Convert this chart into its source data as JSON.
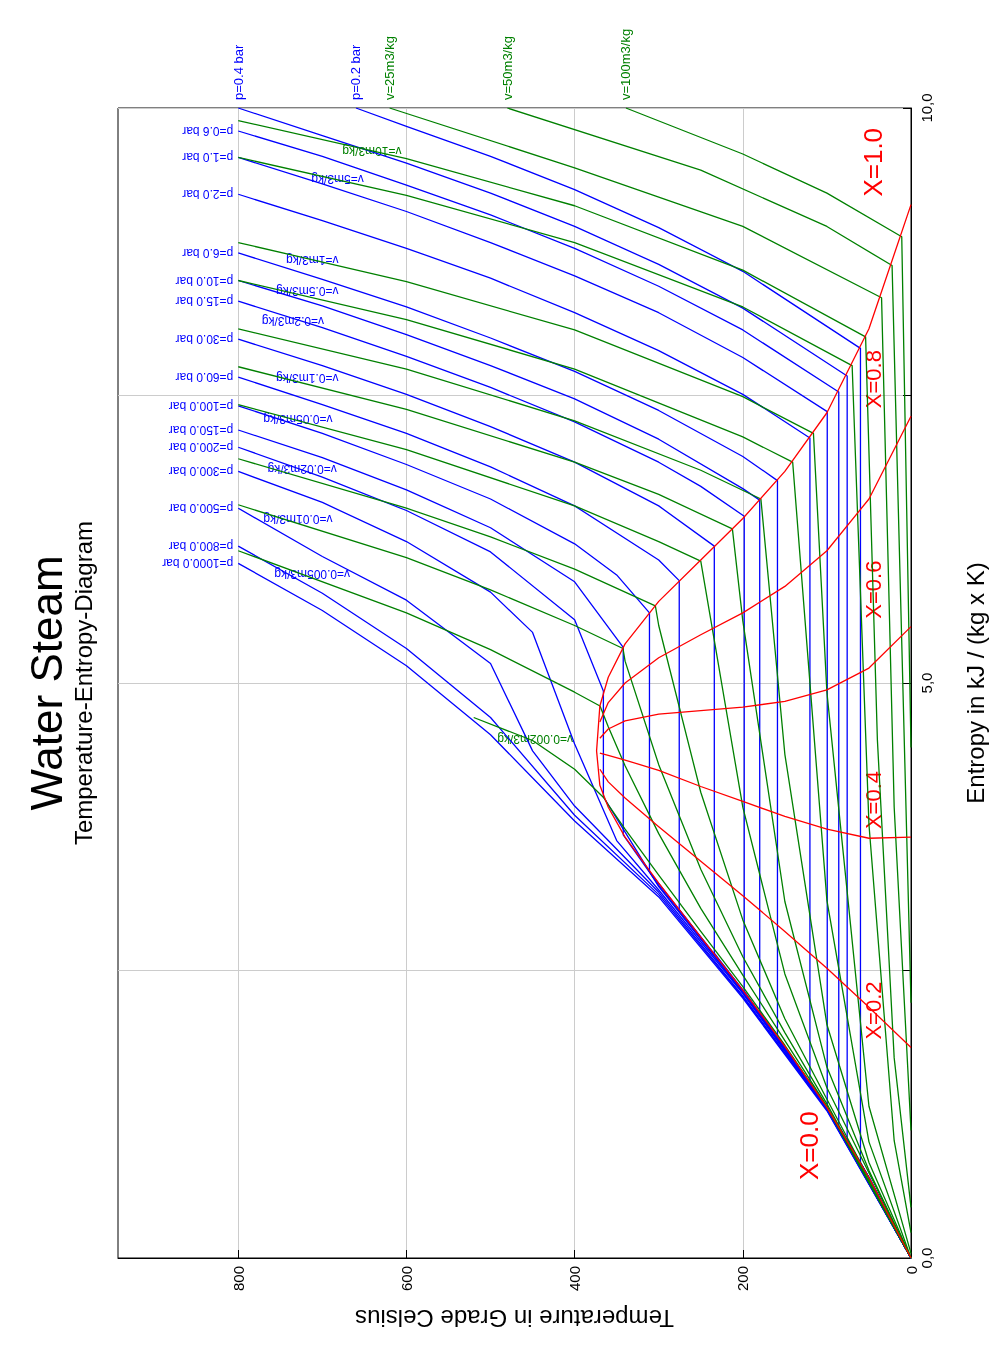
{
  "chart_data": {
    "type": "line",
    "title": "Water Steam",
    "subtitle": "Temperature-Entropy-Diagram",
    "xlabel": "Temperature in Grade Celsius",
    "ylabel": "Entropy in kJ / (kg x K)",
    "xlim": [
      943,
      0
    ],
    "ylim": [
      0,
      10
    ],
    "xticks": [
      0,
      200,
      400,
      600,
      800
    ],
    "yticks": [
      {
        "value": 0,
        "label": "0,0"
      },
      {
        "value": 2.5,
        "label": null
      },
      {
        "value": 5,
        "label": "5,0"
      },
      {
        "value": 7.5,
        "label": null
      },
      {
        "value": 10,
        "label": "10,0"
      }
    ],
    "grid": true,
    "series": [
      {
        "name": "p=1000.0 bar",
        "color": "#0000ff",
        "values": [
          0,
          1.28,
          2.26,
          3.14,
          3.8,
          4.55,
          5.15,
          5.63,
          6.04
        ],
        "x": [
          0,
          100,
          200,
          300,
          400,
          500,
          600,
          700,
          800
        ]
      },
      {
        "name": "p=800.0 bar",
        "color": "#0000ff",
        "values": [
          0,
          1.29,
          2.27,
          3.16,
          3.85,
          4.7,
          5.3,
          5.78,
          6.19
        ],
        "x": [
          0,
          100,
          200,
          300,
          400,
          500,
          600,
          700,
          800
        ]
      },
      {
        "name": "p=500.0 bar",
        "color": "#0000ff",
        "values": [
          0,
          1.29,
          2.28,
          3.18,
          3.93,
          4.41,
          5.17,
          5.72,
          6.1,
          6.52
        ],
        "x": [
          0,
          100,
          200,
          300,
          400,
          450,
          500,
          600,
          700,
          800
        ]
      },
      {
        "name": "p=300.0 bar",
        "color": "#0000ff",
        "values": [
          0,
          1.3,
          2.3,
          3.2,
          3.63,
          4.47,
          5.44,
          5.79,
          6.23,
          6.57,
          6.84
        ],
        "x": [
          0,
          100,
          200,
          300,
          350,
          400,
          450,
          500,
          600,
          700,
          800
        ]
      },
      {
        "name": "p=200.0 bar",
        "color": "#0000ff",
        "values": [
          0,
          1.3,
          2.31,
          3.23,
          4.01,
          4.93,
          5.55,
          6.14,
          6.5,
          6.79,
          7.05
        ],
        "x": [
          0,
          100,
          200,
          300,
          365.8,
          365.8,
          400,
          500,
          600,
          700,
          800
        ]
      },
      {
        "name": "p=150.0 bar",
        "color": "#0000ff",
        "values": [
          0,
          1.3,
          2.32,
          3.24,
          3.68,
          5.31,
          5.88,
          6.35,
          6.68,
          6.96,
          7.2
        ],
        "x": [
          0,
          100,
          200,
          300,
          342.2,
          342.2,
          400,
          500,
          600,
          700,
          800
        ]
      },
      {
        "name": "p=100.0 bar",
        "color": "#0000ff",
        "values": [
          0,
          1.3,
          2.32,
          3.36,
          5.61,
          5.94,
          6.21,
          6.6,
          6.9,
          7.17,
          7.41
        ],
        "x": [
          0,
          100,
          200,
          311,
          311,
          350,
          400,
          500,
          600,
          700,
          800
        ]
      },
      {
        "name": "p=60.0 bar",
        "color": "#0000ff",
        "values": [
          0,
          1.31,
          2.33,
          3.03,
          5.89,
          6.07,
          6.54,
          6.88,
          7.17,
          7.42,
          7.66
        ],
        "x": [
          0,
          100,
          200,
          275.6,
          275.6,
          300,
          400,
          500,
          600,
          700,
          800
        ]
      },
      {
        "name": "p=30.0 bar",
        "color": "#0000ff",
        "values": [
          0,
          1.31,
          2.33,
          2.65,
          6.19,
          6.54,
          6.92,
          7.23,
          7.51,
          7.76,
          7.99
        ],
        "x": [
          0,
          100,
          200,
          233.9,
          233.9,
          300,
          400,
          500,
          600,
          700,
          800
        ]
      },
      {
        "name": "p=15.0 bar",
        "color": "#0000ff",
        "values": [
          0,
          1.31,
          2.32,
          6.45,
          6.71,
          6.92,
          7.27,
          7.57,
          7.84,
          8.09,
          8.32
        ],
        "x": [
          0,
          100,
          198.3,
          198.3,
          250,
          300,
          400,
          500,
          600,
          700,
          800
        ]
      },
      {
        "name": "p=10.0 bar",
        "color": "#0000ff",
        "values": [
          0,
          1.31,
          2.14,
          6.59,
          6.69,
          7.12,
          7.47,
          7.76,
          8.03,
          8.28,
          8.5
        ],
        "x": [
          0,
          100,
          179.9,
          179.9,
          200,
          300,
          400,
          500,
          600,
          700,
          800
        ]
      },
      {
        "name": "p=6.0 bar",
        "color": "#0000ff",
        "values": [
          0,
          1.31,
          1.93,
          6.76,
          6.97,
          7.37,
          7.71,
          8,
          8.27,
          8.51,
          8.74
        ],
        "x": [
          0,
          100,
          158.8,
          158.8,
          200,
          300,
          400,
          500,
          600,
          700,
          800
        ]
      },
      {
        "name": "p=2.0 bar",
        "color": "#0000ff",
        "values": [
          0,
          0.7,
          1.31,
          1.53,
          7.13,
          7.51,
          7.89,
          8.22,
          8.52,
          8.78,
          9.02,
          9.25
        ],
        "x": [
          0,
          50,
          100,
          120.2,
          120.2,
          200,
          300,
          400,
          500,
          600,
          700,
          800
        ]
      },
      {
        "name": "p=1.0 bar",
        "color": "#0000ff",
        "values": [
          0,
          0.7,
          1.3,
          7.36,
          7.83,
          8.22,
          8.54,
          8.83,
          9.1,
          9.34,
          9.57
        ],
        "x": [
          0,
          50,
          99.6,
          99.6,
          200,
          300,
          400,
          500,
          600,
          700,
          800
        ]
      },
      {
        "name": "p=0.6 bar",
        "color": "#0000ff",
        "values": [
          0,
          0.7,
          1.15,
          7.53,
          8.07,
          8.45,
          8.78,
          9.07,
          9.33,
          9.58,
          9.8
        ],
        "x": [
          0,
          50,
          85.9,
          85.9,
          200,
          300,
          400,
          500,
          600,
          700,
          800
        ]
      },
      {
        "name": "p=0.4 bar",
        "color": "#0000ff",
        "values": [
          0,
          0.7,
          1.03,
          7.67,
          8.26,
          8.64,
          8.97,
          9.26,
          9.52,
          9.76,
          10
        ],
        "x": [
          0,
          50,
          75.9,
          75.9,
          200,
          300,
          400,
          500,
          600,
          700,
          800
        ]
      },
      {
        "name": "p=0.2 bar",
        "color": "#0000ff",
        "values": [
          0,
          0.7,
          0.83,
          7.91,
          8.58,
          8.96,
          9.29,
          9.58,
          9.84,
          10
        ],
        "x": [
          0,
          50,
          60.1,
          60.1,
          200,
          300,
          400,
          500,
          600,
          660
        ]
      },
      {
        "color": "#008000",
        "values": [
          0,
          1.31,
          1.85,
          2.36,
          2.84,
          3.33,
          3.73,
          3.94,
          4,
          4.25,
          4.5,
          4.7
        ],
        "x": [
          0,
          100,
          150,
          200,
          250,
          300,
          340,
          360,
          365,
          400,
          450,
          520
        ]
      },
      {
        "color": "#008000",
        "values": [
          0,
          1.32,
          1.89,
          2.46,
          3.04,
          3.69,
          4.28,
          4.62,
          4.8,
          4.92,
          5.29,
          5.61,
          6.15
        ],
        "x": [
          0,
          100,
          150,
          200,
          250,
          300,
          340,
          360,
          369.8,
          400,
          500,
          600,
          800
        ]
      },
      {
        "color": "#008000",
        "values": [
          0,
          1.34,
          1.96,
          2.62,
          3.38,
          4.29,
          5.19,
          5.3,
          5.5,
          5.81,
          6.09,
          6.55
        ],
        "x": [
          0,
          100,
          150,
          200,
          250,
          300,
          340,
          342.5,
          400,
          500,
          600,
          800
        ]
      },
      {
        "color": "#008000",
        "values": [
          0,
          1.38,
          2.08,
          2.94,
          4.05,
          5.5,
          5.67,
          5.99,
          6.27,
          6.52,
          6.95
        ],
        "x": [
          0,
          100,
          150,
          200,
          250,
          300,
          304,
          400,
          500,
          600,
          800
        ]
      },
      {
        "color": "#008000",
        "values": [
          0,
          1.48,
          2.47,
          3.92,
          6.06,
          6.23,
          6.54,
          7.03,
          7.42
        ],
        "x": [
          0,
          100,
          150,
          200,
          250,
          300,
          400,
          600,
          800
        ]
      },
      {
        "color": "#008000",
        "values": [
          0,
          0.76,
          1.66,
          3.1,
          5.54,
          6.34,
          6.64,
          6.92,
          7.38,
          7.75
        ],
        "x": [
          0,
          50,
          100,
          150,
          200,
          212.4,
          300,
          400,
          600,
          800
        ]
      },
      {
        "color": "#008000",
        "values": [
          0,
          0.83,
          2.03,
          4.38,
          6.6,
          6.85,
          7.28,
          7.73,
          8.08
        ],
        "x": [
          0,
          50,
          100,
          150,
          178.5,
          250,
          400,
          600,
          800
        ]
      },
      {
        "color": "#008000",
        "values": [
          0,
          1.01,
          3.11,
          6.92,
          7.14,
          7.73,
          8.16,
          8.5
        ],
        "x": [
          0,
          50,
          100,
          140.7,
          200,
          400,
          600,
          800
        ]
      },
      {
        "color": "#008000",
        "values": [
          0.04,
          1.32,
          4.92,
          7.17,
          7.49,
          8.07,
          8.49,
          8.83
        ],
        "x": [
          0,
          50,
          100,
          116,
          200,
          400,
          600,
          800
        ]
      },
      {
        "color": "#008000",
        "values": [
          0.22,
          1.02,
          3.77,
          7.76,
          8.27,
          8.83,
          9.24,
          9.57
        ],
        "x": [
          0,
          20,
          50,
          70,
          200,
          400,
          600,
          800
        ]
      },
      {
        "color": "#008000",
        "values": [
          0.44,
          1.74,
          4.51,
          8.01,
          8.59,
          9.15,
          9.56,
          9.89
        ],
        "x": [
          0,
          20,
          40,
          54,
          200,
          400,
          600,
          800
        ]
      },
      {
        "name": "v=25m3/kg",
        "color": "#008000",
        "values": [
          1.11,
          3.92,
          8.35,
          8.97,
          9.48,
          10
        ],
        "x": [
          0,
          20,
          35,
          200,
          400,
          620
        ]
      },
      {
        "name": "v=50m3/kg",
        "color": "#008000",
        "values": [
          2.22,
          8.63,
          8.97,
          9.46,
          10
        ],
        "x": [
          0,
          22.5,
          100,
          250,
          480
        ]
      },
      {
        "name": "v=100m3/kg",
        "color": "#008000",
        "values": [
          4.44,
          8.88,
          9.26,
          9.6,
          10
        ],
        "x": [
          0,
          11,
          100,
          200,
          339
        ]
      },
      {
        "color": "#ff0000",
        "values": [
          0,
          0.7,
          1.31,
          1.84,
          2.33,
          2.79,
          3.26,
          3.66,
          3.92,
          4.11,
          4.41,
          4.8,
          5.05,
          5.34,
          5.71,
          6.07,
          6.43,
          6.84,
          7.35,
          8.08,
          9.16
        ],
        "x": [
          0,
          50,
          100,
          150,
          200,
          250,
          300,
          340,
          360,
          370,
          373.9,
          370,
          360,
          340,
          300,
          250,
          200,
          150,
          100,
          50,
          0
        ]
      },
      {
        "name": "X=0.2",
        "color": "#ff0000",
        "values": [
          4.25,
          4.14,
          4,
          3.75,
          3.45,
          3.15,
          2.84,
          2.52,
          2.18,
          1.83
        ],
        "x": [
          370,
          360,
          340,
          300,
          250,
          200,
          150,
          100,
          50,
          0
        ]
      },
      {
        "name": "X=0.4",
        "color": "#ff0000",
        "values": [
          4.39,
          4.37,
          4.33,
          4.24,
          4.1,
          3.97,
          3.84,
          3.73,
          3.65,
          3.66
        ],
        "x": [
          370,
          360,
          340,
          300,
          250,
          200,
          150,
          100,
          50,
          0
        ]
      },
      {
        "name": "X=0.6",
        "color": "#ff0000",
        "values": [
          4.52,
          4.6,
          4.67,
          4.73,
          4.76,
          4.79,
          4.84,
          4.94,
          5.13,
          5.49
        ],
        "x": [
          370,
          360,
          340,
          300,
          250,
          200,
          150,
          100,
          50,
          0
        ]
      },
      {
        "name": "X=0.8",
        "color": "#ff0000",
        "values": [
          4.66,
          4.83,
          5,
          5.22,
          5.42,
          5.61,
          5.84,
          6.15,
          6.6,
          7.32
        ],
        "x": [
          370,
          360,
          340,
          300,
          250,
          200,
          150,
          100,
          50,
          0
        ]
      }
    ],
    "annotations": [
      {
        "text": "v=0.002m3/kg",
        "x": 447,
        "y": 4.51
      },
      {
        "text": "v=0.005m3/kg",
        "x": 712,
        "y": 5.95
      },
      {
        "text": "v=0.01m3/kg",
        "x": 729,
        "y": 6.43
      },
      {
        "text": "v=0.02m3/kg",
        "x": 724,
        "y": 6.86
      },
      {
        "text": "v=0.05m3/kg",
        "x": 729,
        "y": 7.3
      },
      {
        "text": "v=0.1m3/kg",
        "x": 718,
        "y": 7.65
      },
      {
        "text": "v=0.2m3/kg",
        "x": 735,
        "y": 8.15
      },
      {
        "text": "v=0.5m3/kg",
        "x": 718,
        "y": 8.41
      },
      {
        "text": "v=1m3/kg",
        "x": 712,
        "y": 8.68
      },
      {
        "text": "v=5m3/kg",
        "x": 682,
        "y": 9.38
      },
      {
        "text": "v=10m3/kg",
        "x": 641,
        "y": 9.63
      },
      {
        "text": "X=0.0",
        "x": 100,
        "y": 1.31
      },
      {
        "text": "X=1.0",
        "x": 0,
        "y": 9.16
      }
    ]
  }
}
